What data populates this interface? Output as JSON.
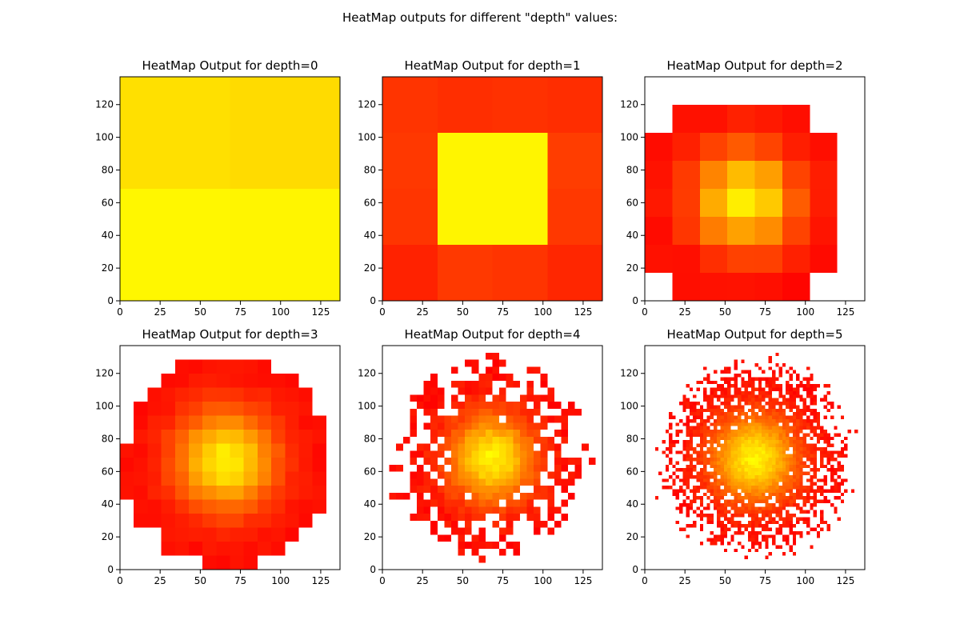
{
  "figure": {
    "suptitle": "HeatMap outputs for different \"depth\" values:"
  },
  "chart_data": [
    {
      "type": "heatmap",
      "depth": 0,
      "title": "HeatMap Output for depth=0",
      "xlabel": "",
      "ylabel": "",
      "xlim": [
        0,
        137
      ],
      "ylim": [
        0,
        137
      ],
      "xticks": [
        0,
        25,
        50,
        75,
        100,
        125
      ],
      "yticks": [
        0,
        20,
        40,
        60,
        80,
        100,
        120
      ],
      "colormap": "autumn",
      "grid_size": 2,
      "generation": "radial-gaussian",
      "center": [
        68.5,
        68.5
      ],
      "intensity_range": [
        0.82,
        0.97
      ]
    },
    {
      "type": "heatmap",
      "depth": 1,
      "title": "HeatMap Output for depth=1",
      "xlabel": "",
      "ylabel": "",
      "xlim": [
        0,
        137
      ],
      "ylim": [
        0,
        137
      ],
      "xticks": [
        0,
        25,
        50,
        75,
        100,
        125
      ],
      "yticks": [
        0,
        20,
        40,
        60,
        80,
        100,
        120
      ],
      "colormap": "autumn",
      "grid_size": 4,
      "generation": "radial-gaussian",
      "center": [
        68.5,
        68.5
      ],
      "intensity_range": [
        0.05,
        0.96
      ]
    },
    {
      "type": "heatmap",
      "depth": 2,
      "title": "HeatMap Output for depth=2",
      "xlabel": "",
      "ylabel": "",
      "xlim": [
        0,
        137
      ],
      "ylim": [
        0,
        137
      ],
      "xticks": [
        0,
        25,
        50,
        75,
        100,
        125
      ],
      "yticks": [
        0,
        20,
        40,
        60,
        80,
        100,
        120
      ],
      "colormap": "autumn",
      "grid_size": 8,
      "generation": "radial-gaussian",
      "center": [
        62,
        62
      ],
      "intensity_range": [
        0.0,
        1.0
      ]
    },
    {
      "type": "heatmap",
      "depth": 3,
      "title": "HeatMap Output for depth=3",
      "xlabel": "",
      "ylabel": "",
      "xlim": [
        0,
        137
      ],
      "ylim": [
        0,
        137
      ],
      "xticks": [
        0,
        25,
        50,
        75,
        100,
        125
      ],
      "yticks": [
        0,
        20,
        40,
        60,
        80,
        100,
        120
      ],
      "colormap": "autumn",
      "grid_size": 16,
      "generation": "radial-gaussian",
      "center": [
        66,
        67
      ],
      "intensity_range": [
        0.0,
        1.0
      ]
    },
    {
      "type": "heatmap",
      "depth": 4,
      "title": "HeatMap Output for depth=4",
      "xlabel": "",
      "ylabel": "",
      "xlim": [
        0,
        137
      ],
      "ylim": [
        0,
        137
      ],
      "xticks": [
        0,
        25,
        50,
        75,
        100,
        125
      ],
      "yticks": [
        0,
        20,
        40,
        60,
        80,
        100,
        120
      ],
      "colormap": "autumn",
      "grid_size": 32,
      "generation": "radial-gaussian",
      "center": [
        68,
        68
      ],
      "intensity_range": [
        0.0,
        1.0
      ]
    },
    {
      "type": "heatmap",
      "depth": 5,
      "title": "HeatMap Output for depth=5",
      "xlabel": "",
      "ylabel": "",
      "xlim": [
        0,
        137
      ],
      "ylim": [
        0,
        137
      ],
      "xticks": [
        0,
        25,
        50,
        75,
        100,
        125
      ],
      "yticks": [
        0,
        20,
        40,
        60,
        80,
        100,
        120
      ],
      "colormap": "autumn",
      "grid_size": 64,
      "generation": "radial-gaussian",
      "center": [
        68,
        68
      ],
      "intensity_range": [
        0.0,
        1.0
      ]
    }
  ]
}
